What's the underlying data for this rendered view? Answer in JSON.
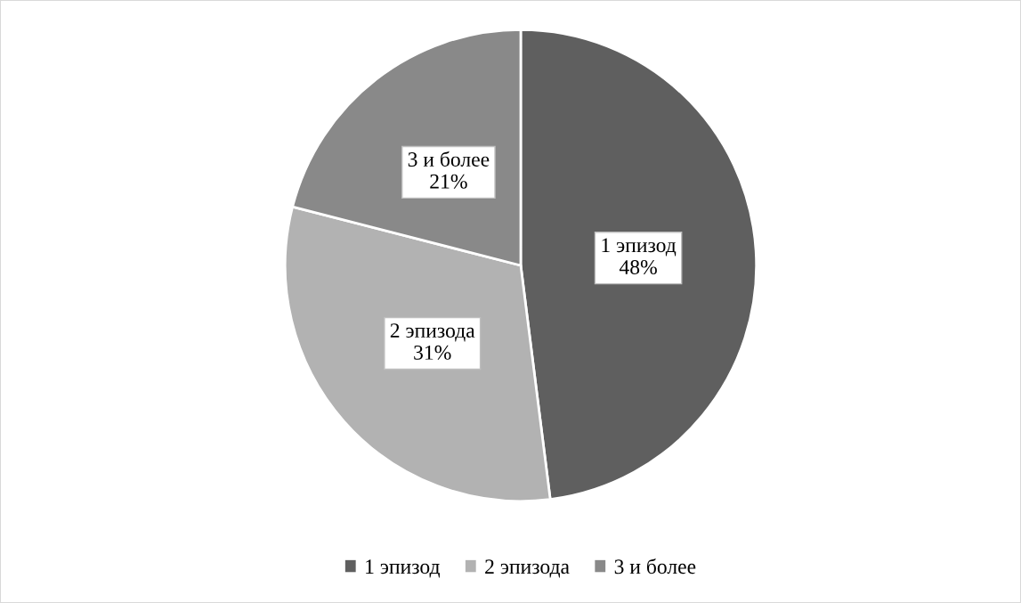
{
  "chart_data": {
    "type": "pie",
    "categories": [
      "1 эпизод",
      "2 эпизода",
      "3 и более"
    ],
    "values": [
      48,
      31,
      21
    ],
    "value_labels": [
      "48%",
      "31%",
      "21%"
    ],
    "colors": [
      "#5f5f5f",
      "#b2b2b2",
      "#898989"
    ],
    "legend": "bottom"
  }
}
